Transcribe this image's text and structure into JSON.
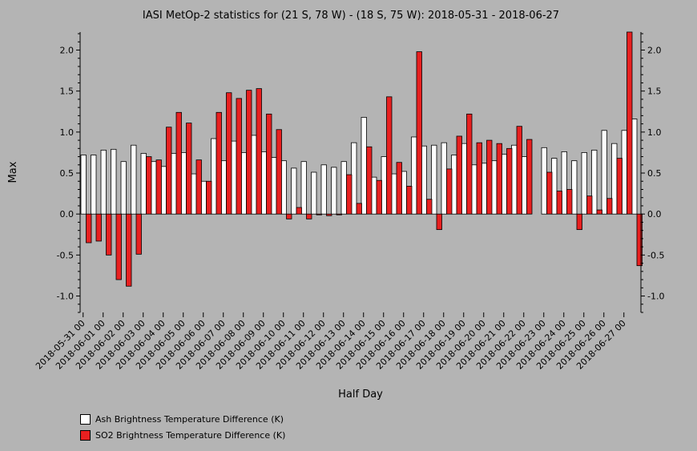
{
  "chart_data": {
    "type": "bar",
    "title": "IASI MetOp-2 statistics for (21 S, 78 W) - (18 S, 75 W): 2018-05-31 - 2018-06-27",
    "xlabel": "Half Day",
    "ylabel": "Max",
    "ylim": [
      -1.2,
      2.22
    ],
    "yticks": [
      "-1.0",
      "-0.5",
      "0.0",
      "0.5",
      "1.0",
      "1.5",
      "2.0"
    ],
    "xtick_labels": [
      "2018-05-31 00",
      "2018-06-01 00",
      "2018-06-02 00",
      "2018-06-03 00",
      "2018-06-04 00",
      "2018-06-05 00",
      "2018-06-06 00",
      "2018-06-07 00",
      "2018-06-08 00",
      "2018-06-09 00",
      "2018-06-10 00",
      "2018-06-11 00",
      "2018-06-12 00",
      "2018-06-13 00",
      "2018-06-14 00",
      "2018-06-15 00",
      "2018-06-16 00",
      "2018-06-17 00",
      "2018-06-18 00",
      "2018-06-19 00",
      "2018-06-20 00",
      "2018-06-21 00",
      "2018-06-22 00",
      "2018-06-23 00",
      "2018-06-24 00",
      "2018-06-25 00",
      "2018-06-26 00",
      "2018-06-27 00"
    ],
    "legend_position": "bottom-left",
    "series": [
      {
        "name": "Ash Brightness Temperature Difference (K)",
        "color": "#ffffff",
        "values": [
          0.72,
          0.72,
          0.78,
          0.79,
          0.64,
          0.84,
          0.74,
          0.64,
          0.58,
          0.74,
          0.75,
          0.49,
          0.4,
          0.92,
          0.65,
          0.89,
          0.75,
          0.96,
          0.76,
          0.69,
          0.65,
          0.56,
          0.64,
          0.51,
          0.6,
          0.57,
          0.64,
          0.87,
          1.18,
          0.45,
          0.7,
          0.49,
          0.52,
          0.94,
          0.83,
          0.84,
          0.87,
          0.72,
          0.86,
          0.6,
          0.62,
          0.65,
          0.73,
          0.84,
          0.7,
          null,
          0.81,
          0.68,
          0.76,
          0.65,
          0.75,
          0.78,
          1.02,
          0.86,
          1.02,
          1.16
        ]
      },
      {
        "name": "SO2 Brightness Temperature Difference (K)",
        "color": "#e82020",
        "values": [
          -0.35,
          -0.33,
          -0.5,
          -0.8,
          -0.88,
          -0.49,
          0.7,
          0.66,
          1.06,
          1.24,
          1.11,
          0.66,
          0.4,
          1.24,
          1.48,
          1.41,
          1.51,
          1.53,
          1.22,
          1.03,
          -0.06,
          0.08,
          -0.06,
          -0.01,
          -0.02,
          -0.01,
          0.48,
          0.13,
          0.82,
          0.41,
          1.43,
          0.63,
          0.34,
          1.98,
          0.18,
          -0.19,
          0.55,
          0.95,
          1.22,
          0.87,
          0.9,
          0.86,
          0.8,
          1.07,
          0.91,
          null,
          0.51,
          0.28,
          0.3,
          -0.19,
          0.22,
          0.05,
          0.19,
          0.68,
          2.22,
          -0.63
        ]
      }
    ]
  },
  "legend": {
    "ash_label": "Ash Brightness Temperature Difference (K)",
    "so2_label": "SO2 Brightness Temperature Difference (K)"
  }
}
